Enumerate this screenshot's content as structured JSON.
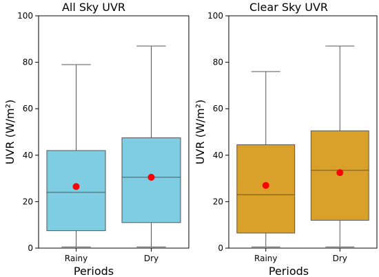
{
  "chart_data": [
    {
      "type": "box",
      "title": "All Sky UVR",
      "xlabel": "Periods",
      "ylabel": "UVR (W/m²)",
      "ylim": [
        0,
        100
      ],
      "yticks": [
        "0",
        "20",
        "40",
        "60",
        "80",
        "100"
      ],
      "categories": [
        "Rainy",
        "Dry"
      ],
      "box_color": "#7ecde2",
      "mean_color": "#ff0000",
      "boxes": [
        {
          "category": "Rainy",
          "min": 0.5,
          "q1": 7.5,
          "median": 24,
          "q3": 42,
          "max": 79,
          "mean": 26.5
        },
        {
          "category": "Dry",
          "min": 0.5,
          "q1": 11,
          "median": 30.5,
          "q3": 47.5,
          "max": 87,
          "mean": 30.5
        }
      ],
      "grid": false
    },
    {
      "type": "box",
      "title": "Clear Sky UVR",
      "xlabel": "Periods",
      "ylabel": "UVR (W/m²)",
      "ylim": [
        0,
        100
      ],
      "yticks": [
        "0",
        "20",
        "40",
        "60",
        "80",
        "100"
      ],
      "categories": [
        "Rainy",
        "Dry"
      ],
      "box_color": "#d9a02a",
      "mean_color": "#ff0000",
      "boxes": [
        {
          "category": "Rainy",
          "min": 0.5,
          "q1": 6.5,
          "median": 23,
          "q3": 44.5,
          "max": 76,
          "mean": 27
        },
        {
          "category": "Dry",
          "min": 0.5,
          "q1": 12,
          "median": 33.5,
          "q3": 50.5,
          "max": 87,
          "mean": 32.5
        }
      ],
      "grid": false
    }
  ]
}
